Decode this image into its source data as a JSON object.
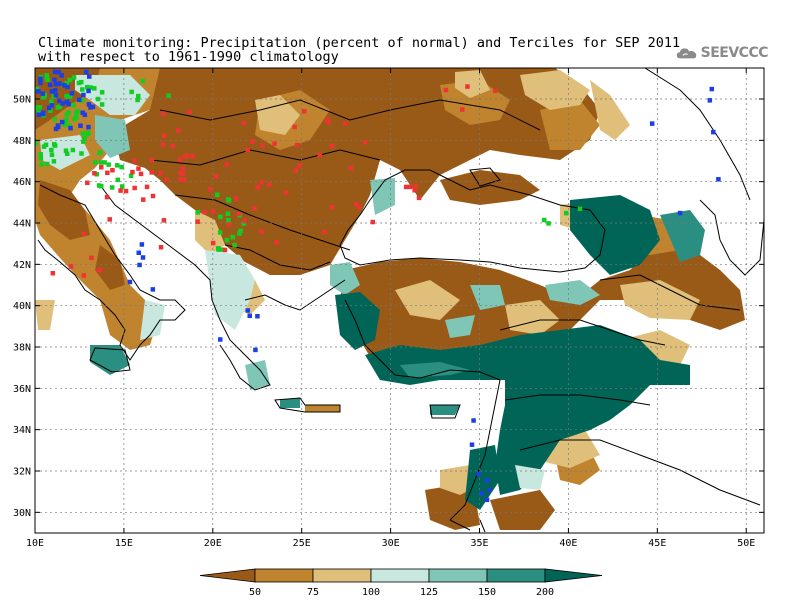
{
  "title": {
    "line1": "Climate monitoring: Precipitation (percent of normal) and Terciles for SEP 2011",
    "line2": "with respect to 1961-1990 climatology"
  },
  "logo": {
    "text": "SEEVCCC",
    "icon": "cloud-icon"
  },
  "map": {
    "lon_range": [
      10,
      51
    ],
    "lat_range": [
      29,
      51.5
    ],
    "x_ticks": [
      "10E",
      "15E",
      "20E",
      "25E",
      "30E",
      "35E",
      "40E",
      "45E",
      "50E"
    ],
    "x_tick_values": [
      10,
      15,
      20,
      25,
      30,
      35,
      40,
      45,
      50
    ],
    "y_ticks": [
      "30N",
      "32N",
      "34N",
      "36N",
      "38N",
      "40N",
      "42N",
      "44N",
      "46N",
      "48N",
      "50N"
    ],
    "y_tick_values": [
      30,
      32,
      34,
      36,
      38,
      40,
      42,
      44,
      46,
      48,
      50
    ],
    "grid": true,
    "ocean_color": "#ffffff"
  },
  "colorbar": {
    "labels": [
      "50",
      "75",
      "100",
      "125",
      "150",
      "200"
    ],
    "colors": [
      "#9a5a17",
      "#c0842f",
      "#dfbf7a",
      "#c8e8df",
      "#7fc6b6",
      "#2a8f80",
      "#006556"
    ]
  },
  "terciles": {
    "colors": {
      "above": "#1a3fe6",
      "normal": "#11cc22",
      "below": "#ee3333"
    }
  }
}
